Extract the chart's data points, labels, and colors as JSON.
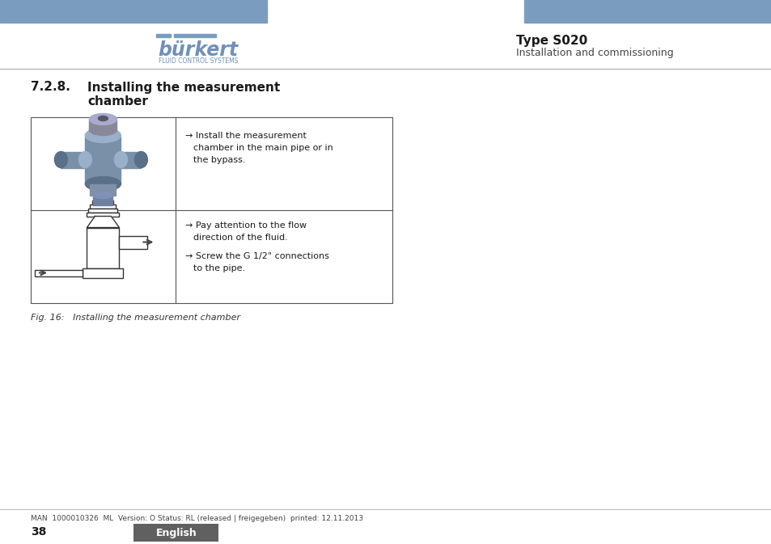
{
  "bg_color": "#ffffff",
  "header_bar_color": "#7a9cbf",
  "type_text": "Type S020",
  "install_text": "Installation and commissioning",
  "footer_line_text": "MAN  1000010326  ML  Version: O Status: RL (released | freigegeben)  printed: 12.11.2013",
  "footer_page": "38",
  "footer_lang_text": "English",
  "footer_lang_bg": "#606060",
  "fig_caption": "Fig. 16:   Installing the measurement chamber",
  "row1_line1": "→ Install the measurement",
  "row1_line2": "   chamber in the main pipe or in",
  "row1_line3": "   the bypass.",
  "row2_line1": "→ Pay attention to the flow",
  "row2_line2": "   direction of the fluid.",
  "row2_line3": "→ Screw the G 1/2\" connections",
  "row2_line4": "   to the pipe.",
  "body_color": "#7a8fa8",
  "body_dark": "#5a6f88",
  "body_light": "#9aafca"
}
